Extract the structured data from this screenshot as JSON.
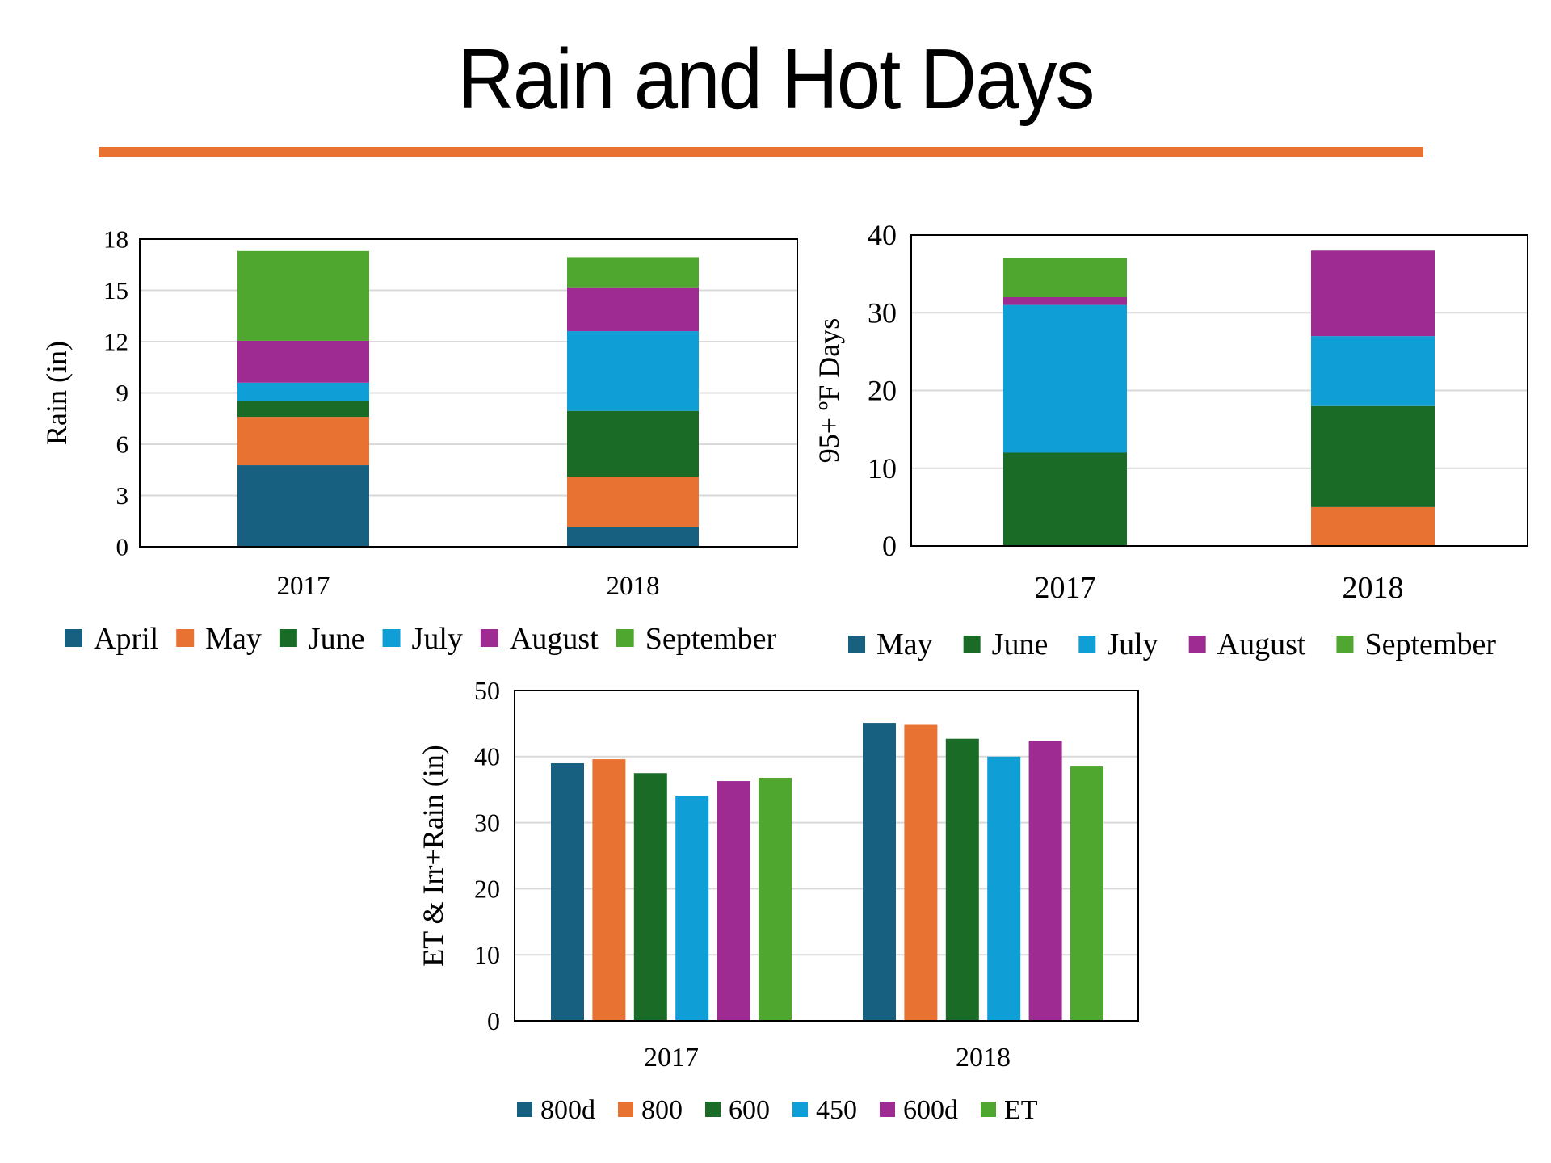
{
  "slide": {
    "title": "Rain and Hot Days",
    "accent_color": "#e87232"
  },
  "chart_data": [
    {
      "id": "rain",
      "type": "bar",
      "stacked": true,
      "title": "",
      "xlabel": "",
      "ylabel": "Rain (in)",
      "categories": [
        "2017",
        "2018"
      ],
      "ylim": [
        0,
        18
      ],
      "yticks": [
        0,
        3,
        6,
        9,
        12,
        15,
        18
      ],
      "grid": true,
      "legend": "bottom",
      "series": [
        {
          "name": "April",
          "color": "#17607f",
          "values": [
            4.77,
            1.17
          ]
        },
        {
          "name": "May",
          "color": "#e87232",
          "values": [
            2.83,
            2.92
          ]
        },
        {
          "name": "June",
          "color": "#1a6b25",
          "values": [
            0.95,
            3.86
          ]
        },
        {
          "name": "July",
          "color": "#0f9fd6",
          "values": [
            1.05,
            4.66
          ]
        },
        {
          "name": "August",
          "color": "#9e2b91",
          "values": [
            2.45,
            2.57
          ]
        },
        {
          "name": "September",
          "color": "#4fa72f",
          "values": [
            5.25,
            1.76
          ]
        }
      ]
    },
    {
      "id": "hotdays",
      "type": "bar",
      "stacked": true,
      "title": "",
      "xlabel": "",
      "ylabel": "95+ ºF Days",
      "categories": [
        "2017",
        "2018"
      ],
      "ylim": [
        0,
        40
      ],
      "yticks": [
        0,
        10,
        20,
        30,
        40
      ],
      "grid": true,
      "legend": "bottom",
      "series": [
        {
          "name": "May",
          "color": "#17607f",
          "bar_color": "#e87232",
          "values": [
            0,
            5
          ]
        },
        {
          "name": "June",
          "color": "#1a6b25",
          "values": [
            12,
            13
          ]
        },
        {
          "name": "July",
          "color": "#0f9fd6",
          "values": [
            19,
            9
          ]
        },
        {
          "name": "August",
          "color": "#9e2b91",
          "values": [
            1,
            11
          ]
        },
        {
          "name": "September",
          "color": "#4fa72f",
          "values": [
            5,
            0
          ]
        }
      ]
    },
    {
      "id": "et",
      "type": "bar",
      "stacked": false,
      "title": "",
      "xlabel": "",
      "ylabel": "ET & Irr+Rain (in)",
      "categories": [
        "2017",
        "2018"
      ],
      "ylim": [
        0,
        50
      ],
      "yticks": [
        0,
        10,
        20,
        30,
        40,
        50
      ],
      "grid": true,
      "legend": "bottom",
      "series": [
        {
          "name": "800d",
          "color": "#17607f",
          "values": [
            39.0,
            45.1
          ]
        },
        {
          "name": "800",
          "color": "#e87232",
          "values": [
            39.6,
            44.8
          ]
        },
        {
          "name": "600",
          "color": "#1a6b25",
          "values": [
            37.5,
            42.7
          ]
        },
        {
          "name": "450",
          "color": "#0f9fd6",
          "values": [
            34.1,
            40.0
          ]
        },
        {
          "name": "600d",
          "color": "#9e2b91",
          "values": [
            36.3,
            42.4
          ]
        },
        {
          "name": "ET",
          "color": "#4fa72f",
          "values": [
            36.8,
            38.5
          ]
        }
      ]
    }
  ]
}
